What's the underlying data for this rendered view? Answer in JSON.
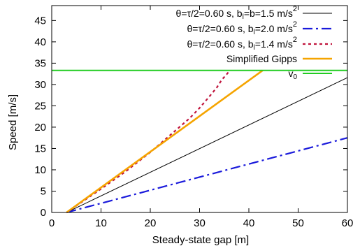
{
  "chart_data": {
    "type": "line",
    "xlabel": "Steady-state gap [m]",
    "ylabel": "Speed [m/s]",
    "xlim": [
      0,
      60
    ],
    "ylim": [
      0,
      48.5
    ],
    "xticks": [
      0,
      10,
      20,
      30,
      40,
      50,
      60
    ],
    "yticks": [
      0,
      5,
      10,
      15,
      20,
      25,
      30,
      35,
      40,
      45
    ],
    "grid": false,
    "legend_position": "top-right",
    "series": [
      {
        "name": "θ=τ/2=0.60 s, b_l=b=1.5 m/s²",
        "legend": {
          "pre": "θ=τ/2=0.60 s, b",
          "sub": "l",
          "mid": "=b=1.5 m/s",
          "sup": "2"
        },
        "color": "#000000",
        "style": "solid",
        "width": 1,
        "x": [
          3,
          60
        ],
        "y": [
          0,
          31.6
        ]
      },
      {
        "name": "θ=τ/2=0.60 s, b_l=2.0 m/s²",
        "legend": {
          "pre": "θ=τ/2=0.60 s, b",
          "sub": "l",
          "mid": "=2.0 m/s",
          "sup": "2"
        },
        "color": "#1a1adb",
        "style": "dashdot",
        "width": 2.2,
        "x": [
          3,
          60
        ],
        "y": [
          0,
          17.5
        ]
      },
      {
        "name": "θ=τ/2=0.60 s, b_l=1.4 m/s²",
        "legend": {
          "pre": "θ=τ/2=0.60 s, b",
          "sub": "l",
          "mid": "=1.4 m/s",
          "sup": "2"
        },
        "color": "#c0143c",
        "style": "dotted",
        "width": 2.2,
        "x": [
          3,
          10,
          15,
          20,
          25,
          28,
          30,
          32,
          33.5,
          34.5,
          35.2,
          35.8,
          36.2
        ],
        "y": [
          0,
          5.5,
          9.6,
          14.1,
          19.1,
          22.1,
          24.5,
          27.2,
          29.3,
          31.1,
          32.0,
          32.8,
          33.3
        ]
      },
      {
        "name": "Simplified Gipps",
        "legend": {
          "pre": "Simplified Gipps",
          "sub": "",
          "mid": "",
          "sup": ""
        },
        "color": "#f5a400",
        "style": "solid",
        "width": 2.6,
        "x": [
          3,
          42.8
        ],
        "y": [
          0,
          33.3
        ]
      },
      {
        "name": "v0",
        "legend": {
          "pre": "v",
          "sub": "0",
          "mid": "",
          "sup": ""
        },
        "color": "#22cc22",
        "style": "solid",
        "width": 2,
        "x": [
          0,
          60
        ],
        "y": [
          33.3,
          33.3
        ]
      }
    ]
  }
}
